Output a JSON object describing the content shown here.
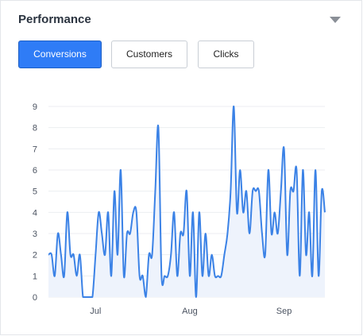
{
  "panel": {
    "title": "Performance",
    "collapse_icon": "caret-down-icon"
  },
  "tabs": [
    {
      "label": "Conversions",
      "active": true
    },
    {
      "label": "Customers",
      "active": false
    },
    {
      "label": "Clicks",
      "active": false
    }
  ],
  "colors": {
    "accent": "#2f7cf6",
    "line": "#3b82e6",
    "area": "#eef3fc"
  },
  "chart_data": {
    "type": "area",
    "series": [
      {
        "values": [
          2,
          2,
          1,
          3,
          2,
          1,
          4,
          2,
          2,
          1,
          2,
          0,
          0,
          0,
          0,
          2,
          4,
          3,
          2,
          4,
          1,
          5,
          2,
          6,
          1,
          3,
          3,
          4,
          4,
          1,
          1,
          0,
          2,
          2,
          5,
          8,
          1,
          1,
          1,
          2,
          4,
          1,
          3,
          3,
          5,
          1,
          4,
          0,
          4,
          1,
          3,
          1,
          2,
          1,
          1,
          1,
          2,
          3,
          5,
          9,
          4,
          6,
          4,
          5,
          3,
          5,
          5,
          5,
          3,
          2,
          6,
          3,
          4,
          3,
          5,
          7,
          2,
          5,
          5,
          6,
          1,
          6,
          2,
          4,
          1,
          6,
          1,
          5,
          4
        ]
      }
    ],
    "x_ticks": [
      "Jul",
      "Aug",
      "Sep"
    ],
    "x_tick_index": [
      15,
      45,
      75
    ],
    "y_ticks": [
      0,
      1,
      2,
      3,
      4,
      5,
      6,
      7,
      8,
      9
    ],
    "ylim": [
      0,
      9
    ],
    "grid": true
  }
}
